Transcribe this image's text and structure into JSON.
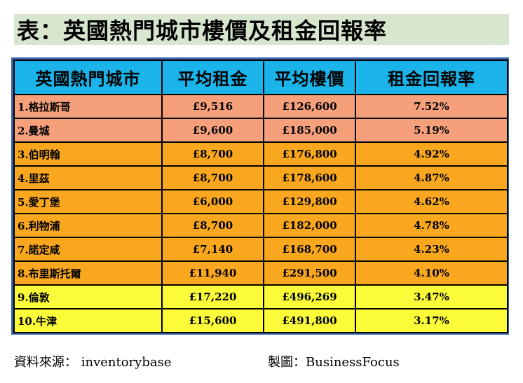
{
  "title": "表：英國熱門城市樓價及租金回報率",
  "table": {
    "headers": [
      "英國熱門城市",
      "平均租金",
      "平均樓價",
      "租金回報率"
    ],
    "rows": [
      {
        "city": "1.格拉斯哥",
        "rent": "£9,516",
        "price": "£126,600",
        "yield": "7.52%",
        "band": "salmon"
      },
      {
        "city": "2.曼城",
        "rent": "£9,600",
        "price": "£185,000",
        "yield": "5.19%",
        "band": "salmon"
      },
      {
        "city": "3.伯明翰",
        "rent": "£8,700",
        "price": "£176,800",
        "yield": "4.92%",
        "band": "orange"
      },
      {
        "city": "4.里茲",
        "rent": "£8,700",
        "price": "£178,600",
        "yield": "4.87%",
        "band": "orange"
      },
      {
        "city": "5.愛丁堡",
        "rent": "£6,000",
        "price": "£129,800",
        "yield": "4.62%",
        "band": "orange"
      },
      {
        "city": "6.利物浦",
        "rent": "£8,700",
        "price": "£182,000",
        "yield": "4.78%",
        "band": "orange"
      },
      {
        "city": "7.諾定咸",
        "rent": "£7,140",
        "price": "£168,700",
        "yield": "4.23%",
        "band": "orange"
      },
      {
        "city": "8.布里斯托爾",
        "rent": "£11,940",
        "price": "£291,500",
        "yield": "4.10%",
        "band": "orange"
      },
      {
        "city": "9.倫敦",
        "rent": "£17,220",
        "price": "£496,269",
        "yield": "3.47%",
        "band": "yellow"
      },
      {
        "city": "10.牛津",
        "rent": "£15,600",
        "price": "£491,800",
        "yield": "3.17%",
        "band": "yellow"
      }
    ]
  },
  "footer": {
    "source": "資料來源： inventorybase",
    "maker": "製圖：BusinessFocus"
  },
  "colors": {
    "title_bg": "#d8e6cf",
    "header_bg": "#1ab4ea",
    "salmon": "#f5a07a",
    "orange": "#f9a71e",
    "yellow": "#fbfb3a",
    "frame": "#3a66b0"
  }
}
